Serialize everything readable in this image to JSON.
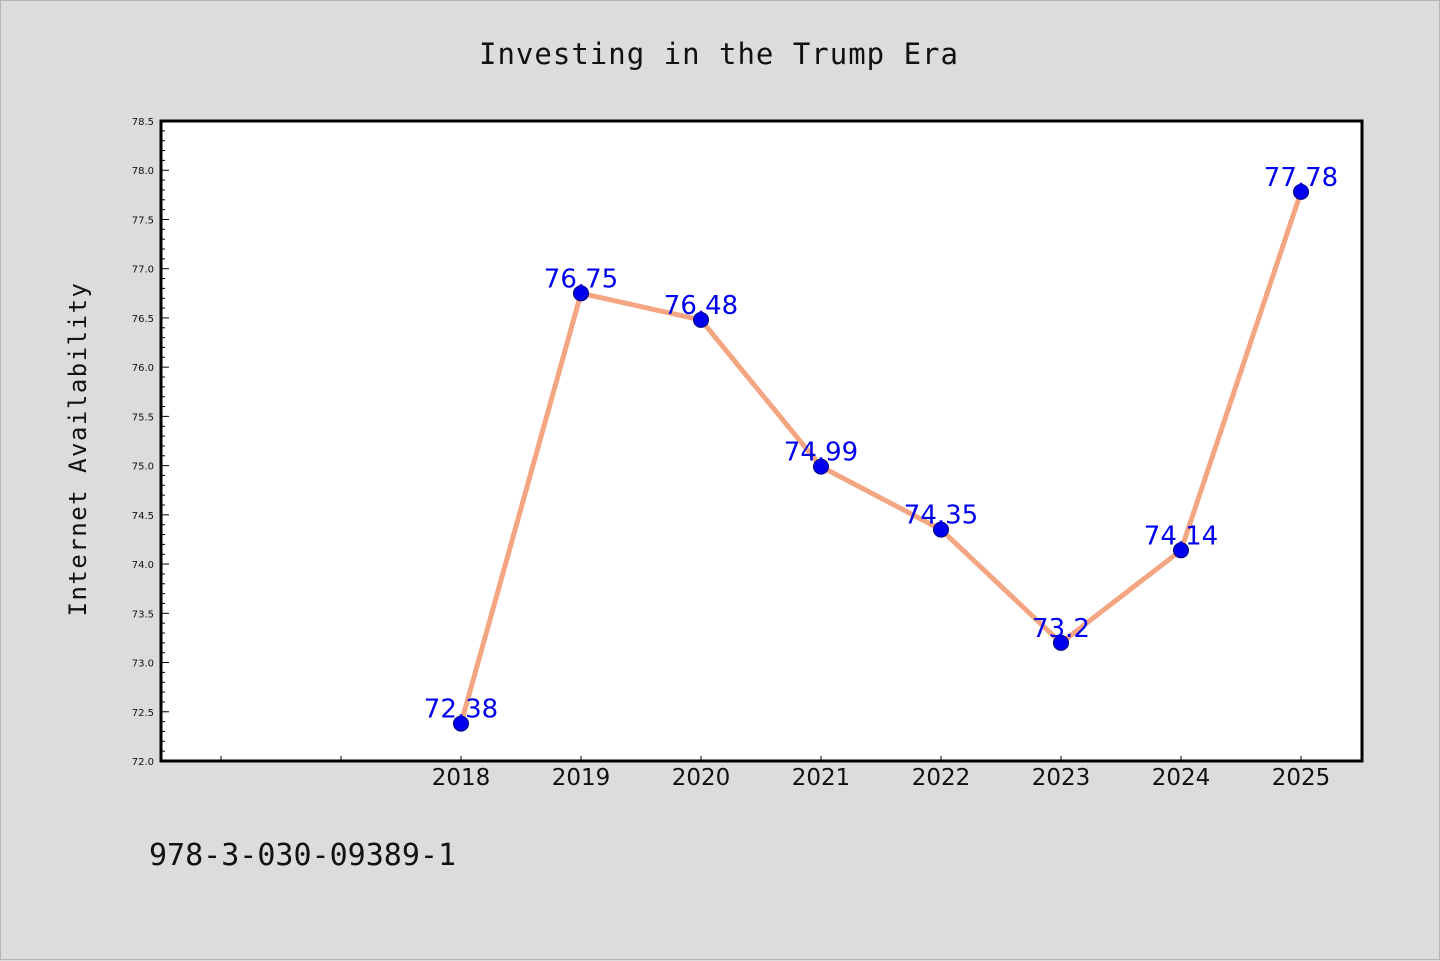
{
  "footer": {
    "code": "978-3-030-09389-1"
  },
  "colors": {
    "background": "#dcdcdc",
    "plot_background": "#ffffff",
    "line": "#f4a582",
    "marker": "#0000ee",
    "data_label": "#0000ee",
    "text": "#111111"
  },
  "chart_data": {
    "type": "line",
    "title": "Investing in the Trump Era",
    "xlabel": "",
    "ylabel": "Internet Availability",
    "x": [
      "2018",
      "2019",
      "2020",
      "2021",
      "2022",
      "2023",
      "2024",
      "2025"
    ],
    "values": [
      72.38,
      76.75,
      76.48,
      74.99,
      74.35,
      73.2,
      74.14,
      77.78
    ],
    "data_labels": [
      "72.38",
      "76.75",
      "76.48",
      "74.99",
      "74.35",
      "73.2",
      "74.14",
      "77.78"
    ],
    "ylim": [
      72.0,
      78.5
    ],
    "y_ticks": [
      "72.0",
      "72.5",
      "73.0",
      "73.5",
      "74.0",
      "74.5",
      "75.0",
      "75.5",
      "76.0",
      "76.5",
      "77.0",
      "77.5",
      "78.0",
      "78.5"
    ],
    "x_slots": 10,
    "first_data_slot": 2,
    "grid": false,
    "legend": "none"
  }
}
